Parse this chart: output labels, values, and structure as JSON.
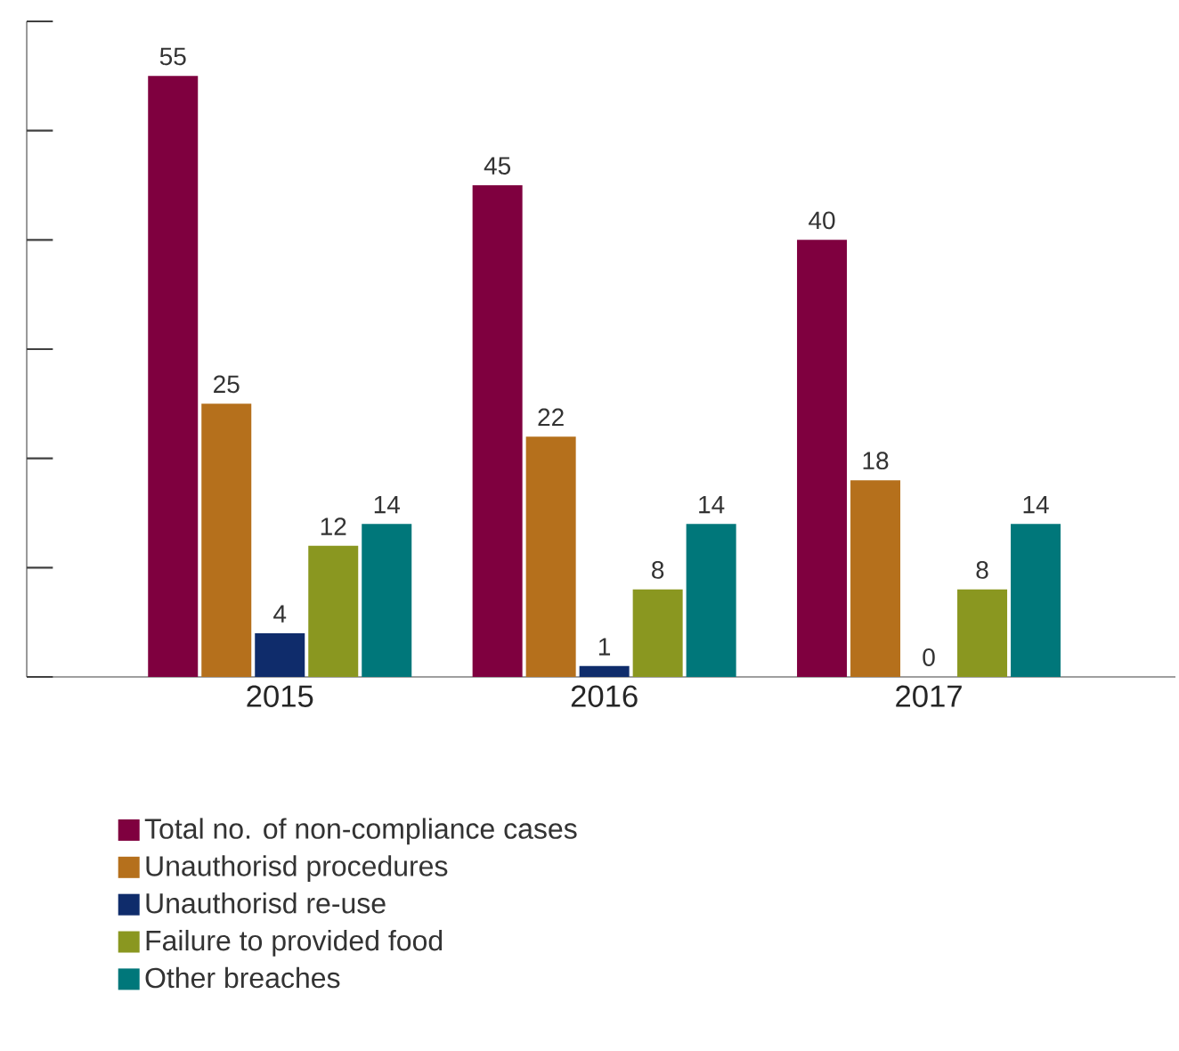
{
  "chart_data": {
    "type": "bar",
    "categories": [
      "2015",
      "2016",
      "2017"
    ],
    "series": [
      {
        "name": "Total no. of non-compliance cases",
        "color": "#7f003f",
        "values": [
          55,
          45,
          40
        ]
      },
      {
        "name": "Unauthorisd procedures",
        "color": "#b5701c",
        "values": [
          25,
          22,
          18
        ]
      },
      {
        "name": "Unauthorisd re-use",
        "color": "#0f2c6b",
        "values": [
          4,
          1,
          0
        ]
      },
      {
        "name": "Failure to provided food",
        "color": "#8a9720",
        "values": [
          12,
          8,
          8
        ]
      },
      {
        "name": "Other breaches",
        "color": "#00777a",
        "values": [
          14,
          14,
          14
        ]
      }
    ],
    "ylim": [
      0,
      60
    ],
    "yticks": [
      {
        "value": 0,
        "label": null
      },
      {
        "value": 10,
        "label": null
      },
      {
        "value": 20,
        "label": null
      },
      {
        "value": 30,
        "label": null
      },
      {
        "value": 40,
        "label": null
      },
      {
        "value": 50,
        "label": null
      },
      {
        "value": 60,
        "label": null
      }
    ],
    "tick_labels": "x",
    "data_labels": true,
    "legend": "bottom",
    "grid": false
  }
}
